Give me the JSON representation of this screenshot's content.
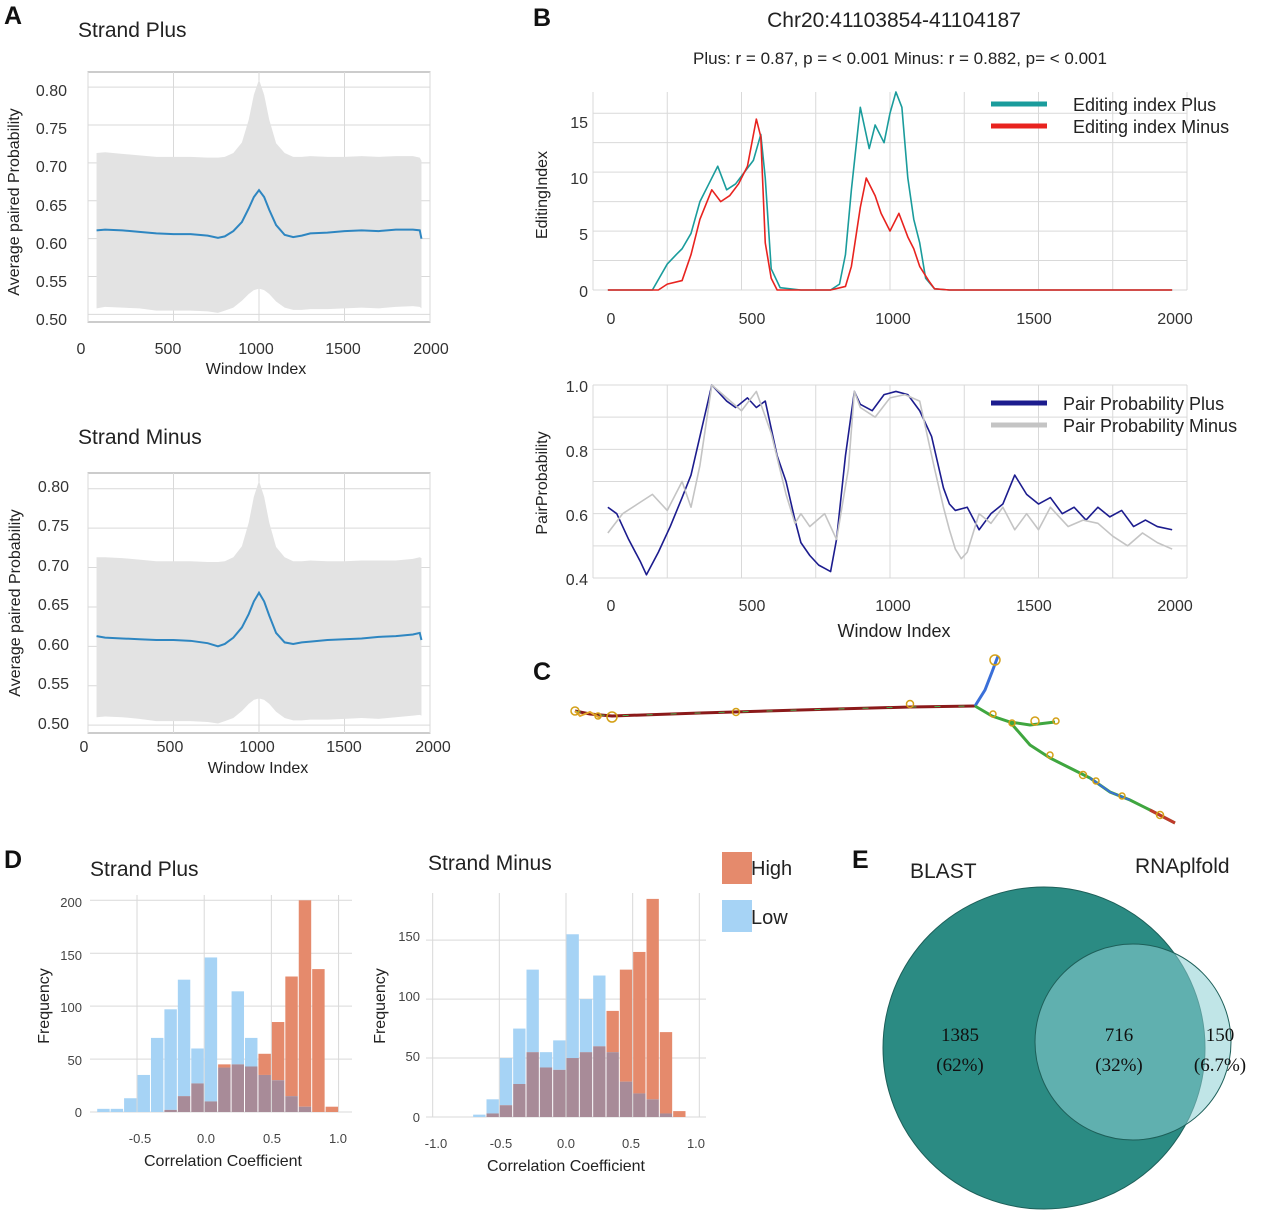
{
  "panels": {
    "A": {
      "label": "A",
      "plots": [
        {
          "title": "Strand Plus",
          "ylabel": "Average paired Probability",
          "xlabel": "Window Index",
          "x_ticks": [
            "0",
            "500",
            "1000",
            "1500",
            "2000"
          ],
          "y_ticks": [
            "0.50",
            "0.55",
            "0.60",
            "0.65",
            "0.70",
            "0.75",
            "0.80"
          ]
        },
        {
          "title": "Strand Minus",
          "ylabel": "Average paired Probability",
          "xlabel": "Window Index",
          "x_ticks": [
            "0",
            "500",
            "1000",
            "1500",
            "2000"
          ],
          "y_ticks": [
            "0.50",
            "0.55",
            "0.60",
            "0.65",
            "0.70",
            "0.75",
            "0.80"
          ]
        }
      ]
    },
    "B": {
      "label": "B",
      "title": "Chr20:41103854-41104187",
      "subtitle": "Plus: r = 0.87, p = < 0.001 Minus: r = 0.882, p= < 0.001",
      "top": {
        "ylabel": "EditingIndex",
        "x_ticks": [
          "0",
          "500",
          "1000",
          "1500",
          "2000"
        ],
        "y_ticks": [
          "0",
          "5",
          "10",
          "15"
        ],
        "legend": [
          "Editing index Plus",
          "Editing index Minus"
        ]
      },
      "bottom": {
        "ylabel": "PairProbability",
        "xlabel": "Window Index",
        "x_ticks": [
          "0",
          "500",
          "1000",
          "1500",
          "2000"
        ],
        "y_ticks": [
          "0.4",
          "0.6",
          "0.8",
          "1.0"
        ],
        "legend": [
          "Pair Probability Plus",
          "Pair Probability Minus"
        ]
      }
    },
    "C": {
      "label": "C"
    },
    "D": {
      "label": "D",
      "plots": [
        {
          "title": "Strand Plus",
          "ylabel": "Frequency",
          "xlabel": "Correlation Coefficient",
          "x_ticks": [
            "-0.5",
            "0.0",
            "0.5",
            "1.0"
          ],
          "y_ticks": [
            "0",
            "50",
            "100",
            "150",
            "200"
          ]
        },
        {
          "title": "Strand Minus",
          "ylabel": "Frequency",
          "xlabel": "Correlation Coefficient",
          "x_ticks": [
            "-1.0",
            "-0.5",
            "0.0",
            "0.5",
            "1.0"
          ],
          "y_ticks": [
            "0",
            "50",
            "100",
            "150"
          ]
        }
      ],
      "legend": [
        "High",
        "Low"
      ]
    },
    "E": {
      "label": "E",
      "set_a": "BLAST",
      "set_b": "RNAplfold",
      "only_a_count": "1385",
      "only_a_pct": "(62%)",
      "both_count": "716",
      "both_pct": "(32%)",
      "only_b_count": "150",
      "only_b_pct": "(6.7%)"
    }
  },
  "colors": {
    "mean_line": "#2e86c1",
    "band": "#e3e3e3",
    "editing_plus": "#1a9c9c",
    "editing_minus": "#e8231f",
    "pair_plus": "#1c1c8e",
    "pair_minus": "#c4c4c4",
    "high": "#e58a6c",
    "low": "#a6d3f5",
    "overlap": "#a88b98",
    "venn_a": "#2b8b83",
    "venn_b": "#8ccfd4",
    "grid": "#d9d9d9"
  },
  "chart_data": [
    {
      "id": "A1",
      "type": "area",
      "title": "Strand Plus",
      "xlabel": "Window Index",
      "ylabel": "Average paired Probability",
      "xlim": [
        0,
        2000
      ],
      "ylim": [
        0.49,
        0.82
      ],
      "x": [
        50,
        100,
        200,
        300,
        400,
        500,
        600,
        700,
        760,
        800,
        850,
        900,
        940,
        970,
        1000,
        1030,
        1060,
        1100,
        1150,
        1200,
        1250,
        1300,
        1400,
        1500,
        1600,
        1700,
        1800,
        1900,
        1940,
        1950
      ],
      "mean": [
        0.611,
        0.612,
        0.611,
        0.609,
        0.607,
        0.606,
        0.606,
        0.604,
        0.601,
        0.603,
        0.61,
        0.622,
        0.64,
        0.655,
        0.664,
        0.655,
        0.638,
        0.618,
        0.605,
        0.602,
        0.604,
        0.607,
        0.608,
        0.61,
        0.611,
        0.61,
        0.612,
        0.612,
        0.611,
        0.6
      ],
      "upper": [
        0.713,
        0.714,
        0.712,
        0.71,
        0.708,
        0.708,
        0.708,
        0.707,
        0.707,
        0.708,
        0.713,
        0.727,
        0.757,
        0.79,
        0.81,
        0.79,
        0.757,
        0.726,
        0.713,
        0.708,
        0.708,
        0.709,
        0.708,
        0.708,
        0.709,
        0.708,
        0.709,
        0.709,
        0.707,
        0.703
      ],
      "lower": [
        0.508,
        0.51,
        0.509,
        0.508,
        0.505,
        0.505,
        0.505,
        0.504,
        0.502,
        0.505,
        0.509,
        0.518,
        0.527,
        0.532,
        0.534,
        0.532,
        0.527,
        0.517,
        0.509,
        0.506,
        0.506,
        0.507,
        0.507,
        0.508,
        0.509,
        0.508,
        0.51,
        0.511,
        0.51,
        0.508
      ]
    },
    {
      "id": "A2",
      "type": "area",
      "title": "Strand Minus",
      "xlabel": "Window Index",
      "ylabel": "Average paired Probability",
      "xlim": [
        0,
        2000
      ],
      "ylim": [
        0.49,
        0.82
      ],
      "x": [
        50,
        100,
        200,
        300,
        400,
        500,
        600,
        700,
        760,
        800,
        850,
        900,
        940,
        970,
        1000,
        1030,
        1060,
        1100,
        1150,
        1200,
        1250,
        1300,
        1400,
        1500,
        1600,
        1700,
        1800,
        1900,
        1940,
        1950
      ],
      "mean": [
        0.613,
        0.611,
        0.61,
        0.609,
        0.608,
        0.608,
        0.607,
        0.604,
        0.6,
        0.603,
        0.611,
        0.624,
        0.641,
        0.657,
        0.668,
        0.657,
        0.639,
        0.617,
        0.605,
        0.603,
        0.605,
        0.606,
        0.608,
        0.609,
        0.61,
        0.612,
        0.613,
        0.615,
        0.617,
        0.608
      ],
      "upper": [
        0.713,
        0.713,
        0.712,
        0.71,
        0.708,
        0.708,
        0.708,
        0.707,
        0.707,
        0.708,
        0.713,
        0.727,
        0.757,
        0.79,
        0.81,
        0.79,
        0.757,
        0.726,
        0.713,
        0.708,
        0.708,
        0.709,
        0.708,
        0.708,
        0.709,
        0.709,
        0.709,
        0.711,
        0.713,
        0.712
      ],
      "lower": [
        0.51,
        0.511,
        0.51,
        0.508,
        0.505,
        0.505,
        0.505,
        0.504,
        0.502,
        0.505,
        0.509,
        0.518,
        0.527,
        0.532,
        0.534,
        0.532,
        0.527,
        0.517,
        0.509,
        0.506,
        0.506,
        0.507,
        0.507,
        0.508,
        0.509,
        0.508,
        0.51,
        0.512,
        0.513,
        0.512
      ]
    },
    {
      "id": "B1",
      "type": "line",
      "ylabel": "EditingIndex",
      "xlim": [
        0,
        2000
      ],
      "ylim": [
        0,
        16.8
      ],
      "series": [
        {
          "name": "Editing index Plus",
          "x": [
            50,
            200,
            250,
            280,
            300,
            330,
            360,
            390,
            420,
            450,
            480,
            510,
            540,
            565,
            580,
            600,
            630,
            700,
            800,
            830,
            850,
            870,
            900,
            930,
            950,
            980,
            1000,
            1020,
            1040,
            1060,
            1080,
            1100,
            1120,
            1150,
            1200,
            1300,
            1500,
            1700,
            1950
          ],
          "y": [
            0,
            0,
            2.2,
            3.0,
            3.5,
            4.8,
            7.5,
            9.0,
            10.5,
            8.5,
            9.0,
            10.0,
            11.0,
            13.2,
            9.5,
            1.8,
            0.2,
            0,
            0,
            0.5,
            3.0,
            8.5,
            15.5,
            12.0,
            14.0,
            12.5,
            15.0,
            16.8,
            15.5,
            9.5,
            6.0,
            4.0,
            1.0,
            0.1,
            0,
            0,
            0,
            0,
            0
          ]
        },
        {
          "name": "Editing index Minus",
          "x": [
            50,
            220,
            250,
            300,
            330,
            360,
            400,
            430,
            460,
            490,
            520,
            550,
            565,
            580,
            600,
            620,
            700,
            800,
            850,
            870,
            900,
            920,
            950,
            970,
            1000,
            1030,
            1060,
            1080,
            1100,
            1130,
            1150,
            1200,
            1950
          ],
          "y": [
            0,
            0,
            0.5,
            0.8,
            3.0,
            6.0,
            8.5,
            7.5,
            8.0,
            9.0,
            10.5,
            14.5,
            13.0,
            4.0,
            1.0,
            0,
            0,
            0,
            0.3,
            2.0,
            7.0,
            9.5,
            8.0,
            6.5,
            5.0,
            6.5,
            4.5,
            3.5,
            2.0,
            0.8,
            0.1,
            0,
            0
          ]
        }
      ]
    },
    {
      "id": "B2",
      "type": "line",
      "ylabel": "PairProbability",
      "xlabel": "Window Index",
      "xlim": [
        0,
        2000
      ],
      "ylim": [
        0.4,
        1.0
      ],
      "series": [
        {
          "name": "Pair Probability Plus",
          "x": [
            50,
            80,
            120,
            160,
            180,
            220,
            260,
            300,
            330,
            360,
            400,
            450,
            480,
            520,
            550,
            580,
            620,
            650,
            680,
            700,
            730,
            760,
            780,
            800,
            820,
            850,
            880,
            900,
            940,
            980,
            1020,
            1060,
            1100,
            1140,
            1180,
            1200,
            1220,
            1260,
            1300,
            1340,
            1380,
            1420,
            1460,
            1500,
            1540,
            1580,
            1620,
            1660,
            1700,
            1740,
            1780,
            1820,
            1860,
            1900,
            1950
          ],
          "y": [
            0.62,
            0.6,
            0.52,
            0.45,
            0.41,
            0.48,
            0.56,
            0.65,
            0.72,
            0.84,
            1.0,
            0.95,
            0.93,
            0.96,
            0.93,
            0.95,
            0.78,
            0.7,
            0.58,
            0.51,
            0.47,
            0.44,
            0.43,
            0.42,
            0.52,
            0.78,
            0.98,
            0.94,
            0.92,
            0.97,
            0.98,
            0.97,
            0.92,
            0.84,
            0.68,
            0.63,
            0.61,
            0.62,
            0.55,
            0.6,
            0.63,
            0.72,
            0.66,
            0.63,
            0.65,
            0.6,
            0.62,
            0.58,
            0.62,
            0.59,
            0.61,
            0.56,
            0.58,
            0.56,
            0.55
          ]
        },
        {
          "name": "Pair Probability Minus",
          "x": [
            50,
            100,
            150,
            200,
            250,
            300,
            330,
            360,
            400,
            450,
            500,
            550,
            600,
            650,
            680,
            700,
            730,
            780,
            820,
            860,
            880,
            900,
            950,
            1000,
            1050,
            1100,
            1150,
            1180,
            1200,
            1220,
            1240,
            1260,
            1300,
            1340,
            1380,
            1420,
            1460,
            1500,
            1540,
            1600,
            1650,
            1700,
            1750,
            1800,
            1850,
            1900,
            1950
          ],
          "y": [
            0.54,
            0.6,
            0.63,
            0.66,
            0.61,
            0.7,
            0.62,
            0.75,
            1.0,
            0.96,
            0.92,
            0.98,
            0.85,
            0.66,
            0.57,
            0.6,
            0.56,
            0.6,
            0.52,
            0.74,
            0.98,
            0.93,
            0.9,
            0.96,
            0.97,
            0.95,
            0.74,
            0.62,
            0.55,
            0.49,
            0.46,
            0.48,
            0.6,
            0.57,
            0.62,
            0.55,
            0.6,
            0.55,
            0.62,
            0.56,
            0.58,
            0.57,
            0.53,
            0.5,
            0.54,
            0.51,
            0.49
          ]
        }
      ]
    },
    {
      "id": "D1",
      "type": "bar",
      "title": "Strand Plus",
      "xlabel": "Correlation Coefficient",
      "ylabel": "Frequency",
      "xlim": [
        -0.85,
        1.1
      ],
      "ylim": [
        0,
        205
      ],
      "bin_edges": [
        -0.8,
        -0.7,
        -0.6,
        -0.5,
        -0.4,
        -0.3,
        -0.2,
        -0.1,
        0.0,
        0.1,
        0.2,
        0.3,
        0.4,
        0.5,
        0.6,
        0.7,
        0.8,
        0.9,
        1.0
      ],
      "series": [
        {
          "name": "High",
          "values": [
            0,
            0,
            0,
            0,
            0,
            2,
            15,
            27,
            10,
            45,
            45,
            43,
            55,
            85,
            128,
            200,
            135,
            5
          ]
        },
        {
          "name": "Low",
          "values": [
            3,
            3,
            13,
            35,
            70,
            97,
            125,
            60,
            146,
            42,
            114,
            70,
            35,
            30,
            15,
            5,
            0,
            0
          ]
        }
      ]
    },
    {
      "id": "D2",
      "type": "bar",
      "title": "Strand Minus",
      "xlabel": "Correlation Coefficient",
      "ylabel": "Frequency",
      "xlim": [
        -1.05,
        1.05
      ],
      "ylim": [
        0,
        190
      ],
      "bin_edges": [
        -0.7,
        -0.6,
        -0.5,
        -0.4,
        -0.3,
        -0.2,
        -0.1,
        0.0,
        0.1,
        0.2,
        0.3,
        0.4,
        0.5,
        0.6,
        0.7,
        0.8,
        0.9
      ],
      "series": [
        {
          "name": "High",
          "values": [
            0,
            3,
            10,
            28,
            55,
            42,
            40,
            50,
            55,
            60,
            90,
            125,
            140,
            185,
            72,
            5
          ]
        },
        {
          "name": "Low",
          "values": [
            2,
            15,
            50,
            75,
            125,
            55,
            65,
            155,
            100,
            120,
            55,
            30,
            20,
            15,
            3,
            0
          ]
        }
      ]
    },
    {
      "id": "E",
      "type": "venn",
      "sets": [
        "BLAST",
        "RNAplfold"
      ],
      "regions": [
        {
          "region": "BLAST only",
          "count": 1385,
          "percent": 62
        },
        {
          "region": "both",
          "count": 716,
          "percent": 32
        },
        {
          "region": "RNAplfold only",
          "count": 150,
          "percent": 6.7
        }
      ]
    }
  ]
}
